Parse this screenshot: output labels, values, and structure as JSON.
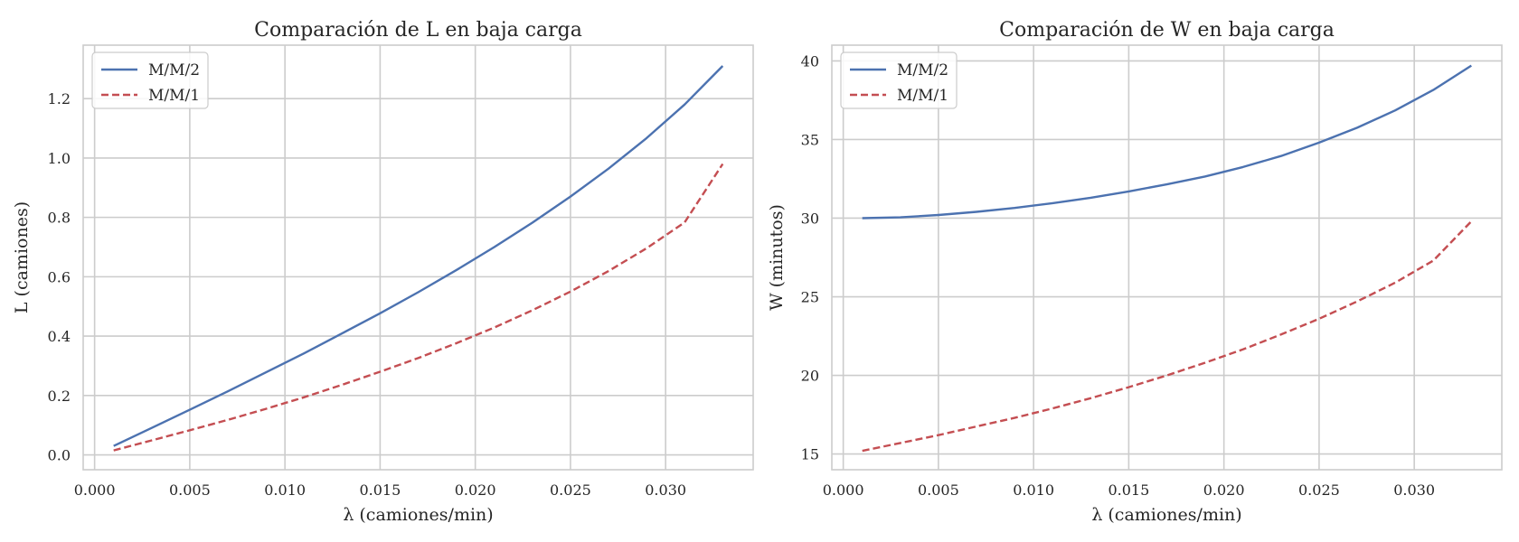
{
  "chart_data": [
    {
      "type": "line",
      "title": "Comparación de L en baja carga",
      "xlabel": "λ (camiones/min)",
      "ylabel": "L (camiones)",
      "xlim": [
        -0.0006,
        0.0346
      ],
      "ylim": [
        -0.05,
        1.38
      ],
      "xticks": [
        0.0,
        0.005,
        0.01,
        0.015,
        0.02,
        0.025,
        0.03
      ],
      "xtick_labels": [
        "0.000",
        "0.005",
        "0.010",
        "0.015",
        "0.020",
        "0.025",
        "0.030"
      ],
      "yticks": [
        0.0,
        0.2,
        0.4,
        0.6,
        0.8,
        1.0,
        1.2
      ],
      "ytick_labels": [
        "0.0",
        "0.2",
        "0.4",
        "0.6",
        "0.8",
        "1.0",
        "1.2"
      ],
      "grid": true,
      "legend_position": "upper left",
      "x": [
        0.001,
        0.003,
        0.005,
        0.007,
        0.009,
        0.011,
        0.013,
        0.015,
        0.017,
        0.019,
        0.021,
        0.023,
        0.025,
        0.027,
        0.029,
        0.031,
        0.033
      ],
      "series": [
        {
          "name": "M/M/2",
          "color": "#4c72b0",
          "style": "solid",
          "values": [
            0.03,
            0.091,
            0.152,
            0.214,
            0.278,
            0.342,
            0.409,
            0.477,
            0.548,
            0.622,
            0.7,
            0.782,
            0.87,
            0.964,
            1.067,
            1.18,
            1.31
          ]
        },
        {
          "name": "M/M/1",
          "color": "#c44e52",
          "style": "dashed",
          "values": [
            0.015,
            0.049,
            0.083,
            0.118,
            0.155,
            0.194,
            0.236,
            0.28,
            0.326,
            0.376,
            0.429,
            0.487,
            0.55,
            0.619,
            0.696,
            0.783,
            0.98
          ]
        }
      ]
    },
    {
      "type": "line",
      "title": "Comparación de W en baja carga",
      "xlabel": "λ (camiones/min)",
      "ylabel": "W (minutos)",
      "xlim": [
        -0.0006,
        0.0346
      ],
      "ylim": [
        14.0,
        41.0
      ],
      "xticks": [
        0.0,
        0.005,
        0.01,
        0.015,
        0.02,
        0.025,
        0.03
      ],
      "xtick_labels": [
        "0.000",
        "0.005",
        "0.010",
        "0.015",
        "0.020",
        "0.025",
        "0.030"
      ],
      "yticks": [
        15,
        20,
        25,
        30,
        35,
        40
      ],
      "ytick_labels": [
        "15",
        "20",
        "25",
        "30",
        "35",
        "40"
      ],
      "grid": true,
      "legend_position": "upper left",
      "x": [
        0.001,
        0.003,
        0.005,
        0.007,
        0.009,
        0.011,
        0.013,
        0.015,
        0.017,
        0.019,
        0.021,
        0.023,
        0.025,
        0.027,
        0.029,
        0.031,
        0.033
      ],
      "series": [
        {
          "name": "M/M/2",
          "color": "#4c72b0",
          "style": "solid",
          "values": [
            30.0,
            30.05,
            30.2,
            30.4,
            30.65,
            30.95,
            31.3,
            31.7,
            32.15,
            32.65,
            33.25,
            33.95,
            34.8,
            35.75,
            36.85,
            38.15,
            39.7
          ]
        },
        {
          "name": "M/M/1",
          "color": "#c44e52",
          "style": "dashed",
          "values": [
            15.2,
            15.7,
            16.2,
            16.75,
            17.3,
            17.9,
            18.55,
            19.25,
            20.0,
            20.8,
            21.65,
            22.6,
            23.6,
            24.7,
            25.9,
            27.3,
            29.8
          ]
        }
      ]
    }
  ]
}
